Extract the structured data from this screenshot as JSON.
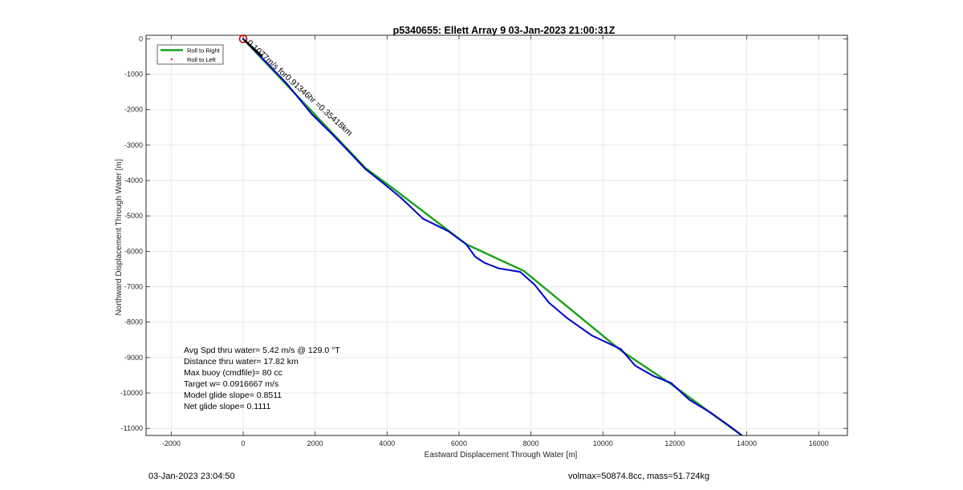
{
  "chart_data": {
    "type": "line",
    "title": "p5340655: Ellett Array 9 03-Jan-2023 21:00:31Z",
    "xlabel": "Eastward Displacement Through Water [m]",
    "ylabel": "Northward Displacement Through Water [m]",
    "xlim": [
      -2700,
      16800
    ],
    "ylim": [
      -11200,
      100
    ],
    "xticks": [
      -2000,
      0,
      2000,
      4000,
      6000,
      8000,
      10000,
      12000,
      14000,
      16000
    ],
    "yticks": [
      0,
      -1000,
      -2000,
      -3000,
      -4000,
      -5000,
      -6000,
      -7000,
      -8000,
      -9000,
      -10000,
      -11000
    ],
    "grid": true,
    "legend": {
      "position": "top-left",
      "entries": [
        "Roll to Right",
        "Roll to Left"
      ]
    },
    "series": [
      {
        "name": "Roll to Right",
        "color": "#1aa11a",
        "x": [
          0,
          3400,
          4200,
          6200,
          7800,
          10500,
          11900,
          14000
        ],
        "y": [
          0,
          -3650,
          -4250,
          -5800,
          -6550,
          -8800,
          -9750,
          -11300
        ]
      },
      {
        "name": "Roll to Left",
        "color": "#ff0000",
        "marker": "dot",
        "x": [],
        "y": []
      },
      {
        "color": "#0000cc",
        "x": [
          0,
          600,
          1200,
          1900,
          2500,
          3000,
          3400,
          3900,
          4400,
          5000,
          5700,
          6200,
          6450,
          6700,
          7100,
          7700,
          8100,
          8500,
          9000,
          9700,
          10500,
          10900,
          11400,
          11900,
          12400,
          13000,
          13500,
          14000
        ],
        "y": [
          0,
          -620,
          -1250,
          -2120,
          -2720,
          -3250,
          -3680,
          -4080,
          -4500,
          -5080,
          -5430,
          -5800,
          -6150,
          -6320,
          -6480,
          -6580,
          -6940,
          -7450,
          -7880,
          -8380,
          -8760,
          -9230,
          -9520,
          -9720,
          -10190,
          -10560,
          -10920,
          -11300
        ]
      }
    ],
    "annotations": {
      "start_marker_color": "#cc0000",
      "segment_label": "0.1077m/s for0.91346hr =0.35418km",
      "stats": [
        "Avg Spd thru water=  5.42 m/s @ 129.0 °T",
        "Distance thru water= 17.82 km",
        "Max buoy (cmdfile)= 80 cc",
        "Target w= 0.0916667 m/s",
        "Model glide slope= 0.8511",
        "Net glide slope= 0.1111"
      ]
    }
  },
  "footer": {
    "timestamp": "03-Jan-2023 23:04:50",
    "volmax_mass": "volmax=50874.8cc, mass=51.724kg"
  }
}
